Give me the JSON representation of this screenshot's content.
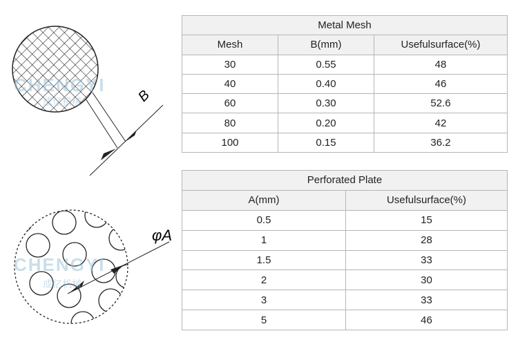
{
  "mesh_table": {
    "title": "Metal Mesh",
    "columns": [
      "Mesh",
      "B(mm)",
      "Usefulsurface(%)"
    ],
    "rows": [
      [
        "30",
        "0.55",
        "48"
      ],
      [
        "40",
        "0.40",
        "46"
      ],
      [
        "60",
        "0.30",
        "52.6"
      ],
      [
        "80",
        "0.20",
        "42"
      ],
      [
        "100",
        "0.15",
        "36.2"
      ]
    ]
  },
  "plate_table": {
    "title": "Perforated Plate",
    "columns": [
      "A(mm)",
      "Usefulsurface(%)"
    ],
    "rows": [
      [
        "0.5",
        "15"
      ],
      [
        "1",
        "28"
      ],
      [
        "1.5",
        "33"
      ],
      [
        "2",
        "30"
      ],
      [
        "3",
        "33"
      ],
      [
        "5",
        "46"
      ]
    ]
  },
  "mesh_diagram": {
    "label": "B"
  },
  "plate_diagram": {
    "label": "φA"
  },
  "watermark": {
    "text": "CHENGYI",
    "subtext": "成亿机械"
  }
}
